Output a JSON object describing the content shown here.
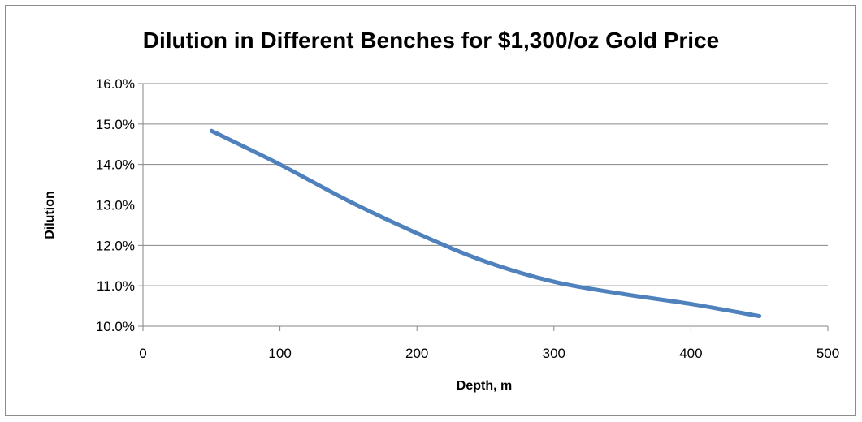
{
  "chart_data": {
    "type": "line",
    "title": "Dilution in Different Benches for $1,300/oz Gold Price",
    "xlabel": "Depth, m",
    "ylabel": "Dilution",
    "xlim": [
      0,
      500
    ],
    "ylim": [
      10.0,
      16.0
    ],
    "x_ticks": [
      "0",
      "100",
      "200",
      "300",
      "400",
      "500"
    ],
    "y_ticks": [
      "10.0%",
      "11.0%",
      "12.0%",
      "13.0%",
      "14.0%",
      "15.0%",
      "16.0%"
    ],
    "grid": "horizontal",
    "legend": "none",
    "series": [
      {
        "color": "#4F81BD",
        "x": [
          50,
          100,
          150,
          200,
          250,
          300,
          350,
          400,
          450
        ],
        "y": [
          14.83,
          14.0,
          13.1,
          12.3,
          11.6,
          11.1,
          10.8,
          10.55,
          10.25
        ]
      }
    ]
  }
}
